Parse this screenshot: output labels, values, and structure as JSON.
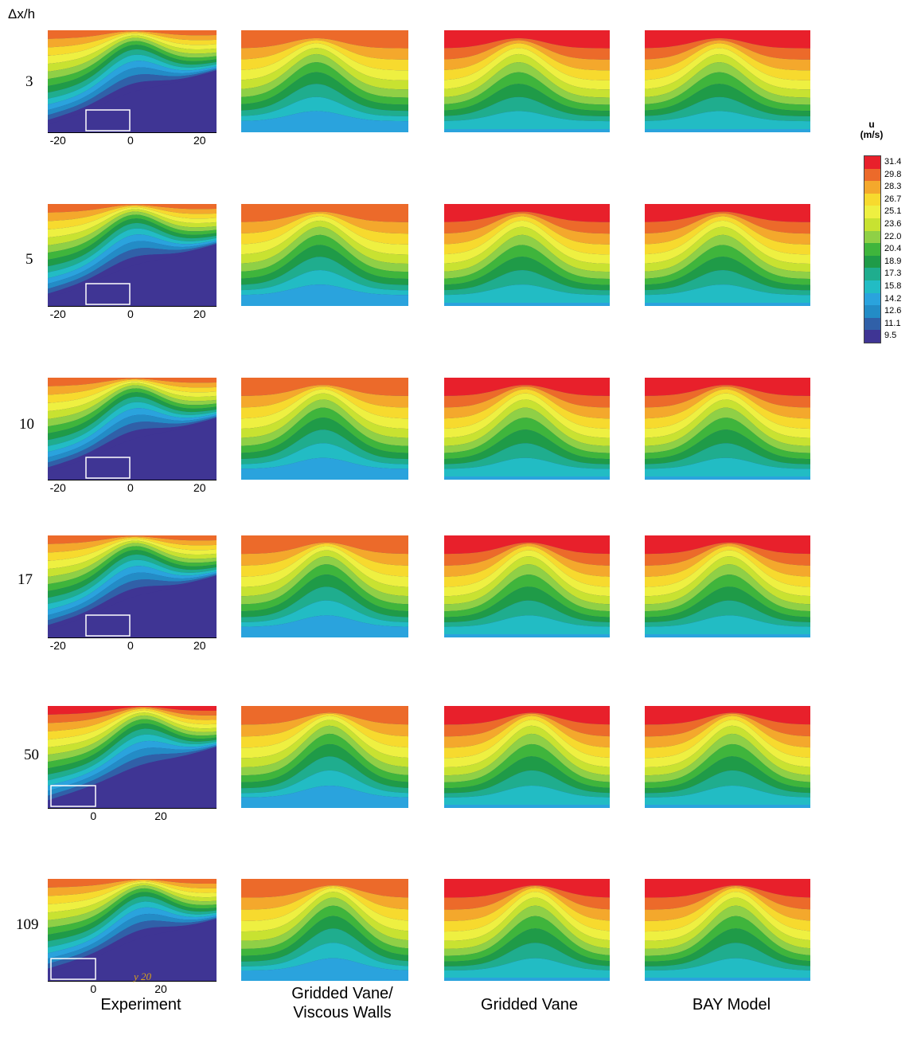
{
  "chart_data": {
    "type": "heatmap",
    "row_axis_title": "Δx/h",
    "rows": [
      "3",
      "5",
      "10",
      "17",
      "50",
      "109"
    ],
    "columns": [
      "Experiment",
      "Gridded Vane/\nViscous Walls",
      "Gridded Vane",
      "BAY Model"
    ],
    "experiment_xticks": [
      [
        "-20",
        "0",
        "20"
      ],
      [
        "-20",
        "0",
        "20"
      ],
      [
        "-20",
        "0",
        "20"
      ],
      [
        "-20",
        "0",
        "20"
      ],
      [
        "0",
        "20"
      ],
      [
        "0",
        "20"
      ]
    ],
    "stray_mark": "y 20",
    "colorbar": {
      "title_line1": "u",
      "title_line2": "(m/s)",
      "levels": [
        31.4,
        29.8,
        28.3,
        26.7,
        25.1,
        23.6,
        22.0,
        20.4,
        18.9,
        17.3,
        15.8,
        14.2,
        12.6,
        11.1,
        9.5
      ],
      "labels": [
        "31.4",
        "29.8",
        "28.3",
        "26.7",
        "25.1",
        "23.6",
        "22.0",
        "20.4",
        "18.9",
        "17.3",
        "15.8",
        "14.2",
        "12.6",
        "11.1",
        "9.5"
      ],
      "colors": [
        "#e8202b",
        "#ec6a2a",
        "#f4a82c",
        "#f7da2e",
        "#eef041",
        "#c8e231",
        "#8fd046",
        "#3fb53c",
        "#1f9b48",
        "#1fad8e",
        "#22bcc4",
        "#2aa3dd",
        "#238cc6",
        "#3060a8",
        "#3f3594"
      ]
    },
    "units": "m/s"
  }
}
